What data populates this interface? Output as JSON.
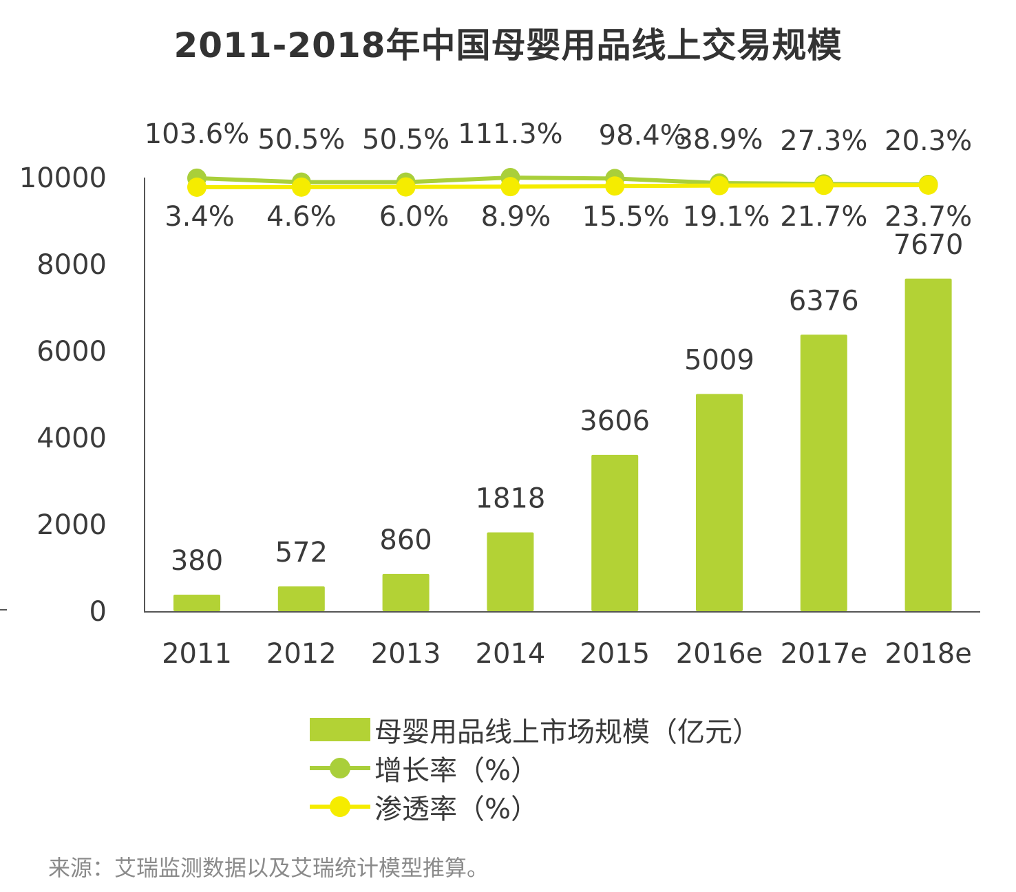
{
  "title": "2011-2018年中国母婴用品线上交易规模",
  "colors": {
    "bar": "#b3d235",
    "growth_line": "#a9cf3a",
    "penetration_line": "#f5ec00",
    "axis": "#555555"
  },
  "chart_data": {
    "type": "bar",
    "title": "2011-2018年中国母婴用品线上交易规模",
    "categories": [
      "2011",
      "2012",
      "2013",
      "2014",
      "2015",
      "2016e",
      "2017e",
      "2018e"
    ],
    "ylim": [
      0,
      10000
    ],
    "yticks": [
      0,
      2000,
      4000,
      6000,
      8000,
      10000
    ],
    "series": [
      {
        "name": "母婴用品线上市场规模（亿元）",
        "kind": "bar",
        "values": [
          380,
          572,
          860,
          1818,
          3606,
          5009,
          6376,
          7670
        ],
        "labels": [
          "380",
          "572",
          "860",
          "1818",
          "3606",
          "5009",
          "6376",
          "7670"
        ]
      },
      {
        "name": "增长率（%）",
        "kind": "line",
        "values": [
          103.6,
          50.5,
          50.5,
          111.3,
          98.4,
          38.9,
          27.3,
          20.3
        ],
        "labels": [
          "103.6%",
          "50.5%",
          "50.5%",
          "111.3%",
          "98.4%",
          "38.9%",
          "27.3%",
          "20.3%"
        ]
      },
      {
        "name": "渗透率（%）",
        "kind": "line",
        "values": [
          3.4,
          4.6,
          6.0,
          8.9,
          15.5,
          19.1,
          21.7,
          23.7
        ],
        "labels": [
          "3.4%",
          "4.6%",
          "6.0%",
          "8.9%",
          "15.5%",
          "19.1%",
          "21.7%",
          "23.7%"
        ]
      }
    ],
    "legend": [
      "母婴用品线上市场规模（亿元）",
      "增长率（%）",
      "渗透率（%）"
    ],
    "legend_position": "bottom"
  },
  "source": "来源：艾瑞监测数据以及艾瑞统计模型推算。"
}
